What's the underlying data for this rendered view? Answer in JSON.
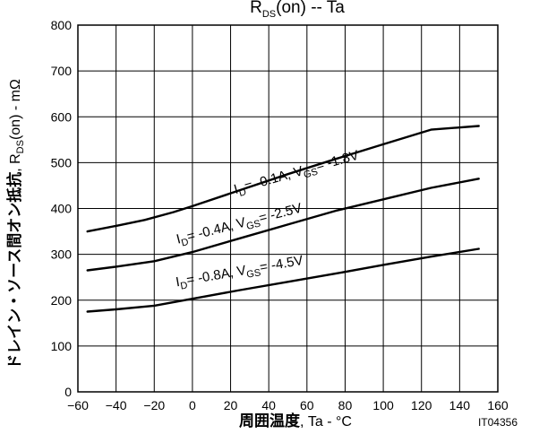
{
  "chart_data": {
    "type": "line",
    "title_main": "R",
    "title_sub": "DS",
    "title_rest": "(on)  --  Ta",
    "xlabel_jp": "周囲温度",
    "xlabel_rest": ",  Ta  -  °C",
    "ylabel_jp": "ドレイン・ソース間オン抵抗",
    "ylabel_mid": ",  R",
    "ylabel_sub": "DS",
    "ylabel_rest": "(on)  -  mΩ",
    "xlim": [
      -60,
      160
    ],
    "ylim": [
      0,
      800
    ],
    "x_ticks": [
      -60,
      -40,
      -20,
      0,
      20,
      40,
      60,
      80,
      100,
      120,
      140,
      160
    ],
    "y_ticks": [
      0,
      100,
      200,
      300,
      400,
      500,
      600,
      700,
      800
    ],
    "x_tick_labels": [
      "−60",
      "−40",
      "−20",
      "0",
      "20",
      "40",
      "60",
      "80",
      "100",
      "120",
      "140",
      "160"
    ],
    "y_tick_labels": [
      "0",
      "100",
      "200",
      "300",
      "400",
      "500",
      "600",
      "700",
      "800"
    ],
    "grid": true,
    "figure_code": "IT04356",
    "series": [
      {
        "name": "ID= -0.1A, VGS= -1.8V",
        "label_parts": [
          "I",
          "D",
          "= -0.1A, V",
          "GS",
          "= -1.8V"
        ],
        "label_anchor": [
          55,
          470
        ],
        "x": [
          -55,
          -40,
          -25,
          -10,
          0,
          25,
          50,
          75,
          100,
          125,
          150
        ],
        "y": [
          350,
          362,
          375,
          392,
          405,
          440,
          475,
          508,
          540,
          572,
          580
        ]
      },
      {
        "name": "ID= -0.4A, VGS= -2.5V",
        "label_parts": [
          "I",
          "D",
          "= -0.4A, V",
          "GS",
          "= -2.5V"
        ],
        "label_anchor": [
          25,
          358
        ],
        "x": [
          -55,
          -40,
          -20,
          0,
          25,
          50,
          75,
          100,
          125,
          150
        ],
        "y": [
          265,
          273,
          285,
          305,
          335,
          365,
          395,
          420,
          445,
          465
        ]
      },
      {
        "name": "ID= -0.8A, VGS= -4.5V",
        "label_parts": [
          "I",
          "D",
          "= -0.8A, V",
          "GS",
          "= -4.5V"
        ],
        "label_anchor": [
          25,
          254
        ],
        "x": [
          -55,
          -40,
          -20,
          0,
          25,
          50,
          75,
          100,
          125,
          150
        ],
        "y": [
          175,
          180,
          188,
          203,
          222,
          240,
          258,
          277,
          295,
          312
        ]
      }
    ]
  }
}
